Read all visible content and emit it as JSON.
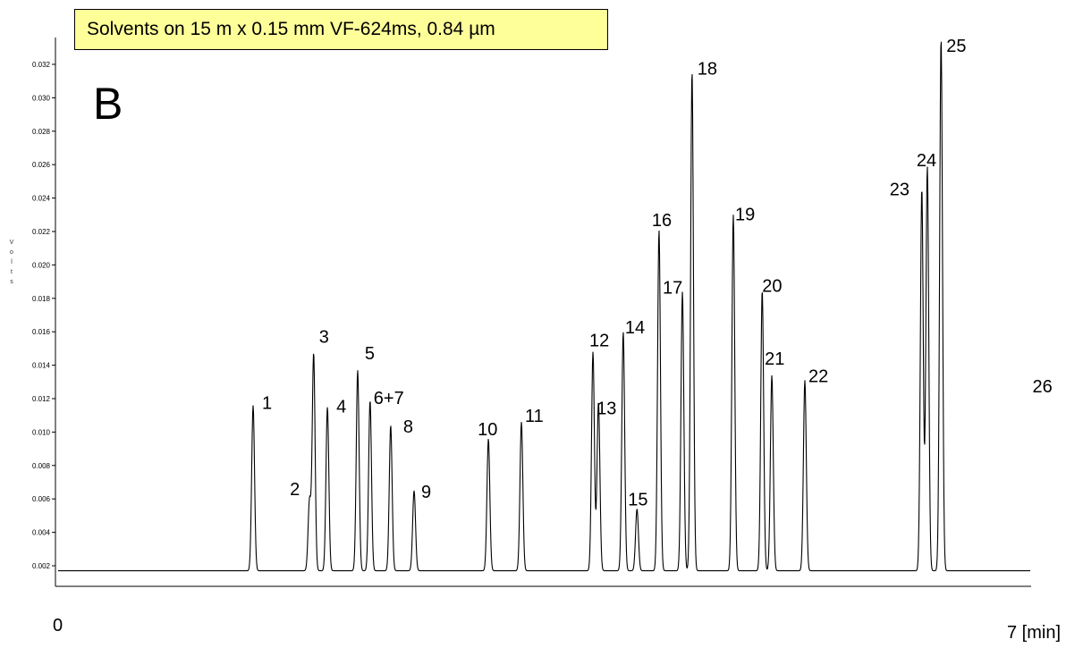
{
  "chart_data": {
    "type": "line",
    "title": "Solvents on 15 m x 0.15 mm VF-624ms, 0.84 µm",
    "panel_label": "B",
    "ylabel": "Volts",
    "xlabel": "",
    "x_tick_labels": [
      "0",
      "7  [min]"
    ],
    "xlim": [
      0,
      7
    ],
    "ylim": [
      0.0015,
      0.0335
    ],
    "y_ticks": [
      0.002,
      0.004,
      0.006,
      0.008,
      0.01,
      0.012,
      0.014,
      0.016,
      0.018,
      0.02,
      0.022,
      0.024,
      0.026,
      0.028,
      0.03,
      0.032
    ],
    "y_tick_labels": [
      "0.002",
      "0.004",
      "0.006",
      "0.008",
      "0.010",
      "0.012",
      "0.014",
      "0.016",
      "0.018",
      "0.020",
      "0.022",
      "0.024",
      "0.026",
      "0.028",
      "0.030",
      "0.032"
    ],
    "baseline": 0.0017,
    "grid": false,
    "peaks": [
      {
        "label": "1",
        "x": 1.43,
        "y": 0.0116
      },
      {
        "label": "2",
        "x": 1.84,
        "y": 0.0059
      },
      {
        "label": "3",
        "x": 1.87,
        "y": 0.0147
      },
      {
        "label": "4",
        "x": 1.97,
        "y": 0.0115
      },
      {
        "label": "5",
        "x": 2.19,
        "y": 0.0137
      },
      {
        "label": "6+7",
        "x": 2.28,
        "y": 0.0119
      },
      {
        "label": "8",
        "x": 2.43,
        "y": 0.0104
      },
      {
        "label": "9",
        "x": 2.6,
        "y": 0.0065
      },
      {
        "label": "10",
        "x": 3.14,
        "y": 0.0096
      },
      {
        "label": "11",
        "x": 3.38,
        "y": 0.0106
      },
      {
        "label": "12",
        "x": 3.9,
        "y": 0.0148
      },
      {
        "label": "13",
        "x": 3.94,
        "y": 0.0118
      },
      {
        "label": "14",
        "x": 4.12,
        "y": 0.016
      },
      {
        "label": "15",
        "x": 4.22,
        "y": 0.0054
      },
      {
        "label": "16",
        "x": 4.38,
        "y": 0.0221
      },
      {
        "label": "17",
        "x": 4.55,
        "y": 0.0184
      },
      {
        "label": "18",
        "x": 4.62,
        "y": 0.0316
      },
      {
        "label": "19",
        "x": 4.92,
        "y": 0.023
      },
      {
        "label": "20",
        "x": 5.13,
        "y": 0.0185
      },
      {
        "label": "21",
        "x": 5.2,
        "y": 0.0134
      },
      {
        "label": "22",
        "x": 5.44,
        "y": 0.0131
      },
      {
        "label": "23",
        "x": 6.29,
        "y": 0.0246
      },
      {
        "label": "24",
        "x": 6.33,
        "y": 0.0259
      },
      {
        "label": "25",
        "x": 6.43,
        "y": 0.0336
      },
      {
        "label": "26",
        "x": 7.12,
        "y": 0.0113
      }
    ]
  }
}
